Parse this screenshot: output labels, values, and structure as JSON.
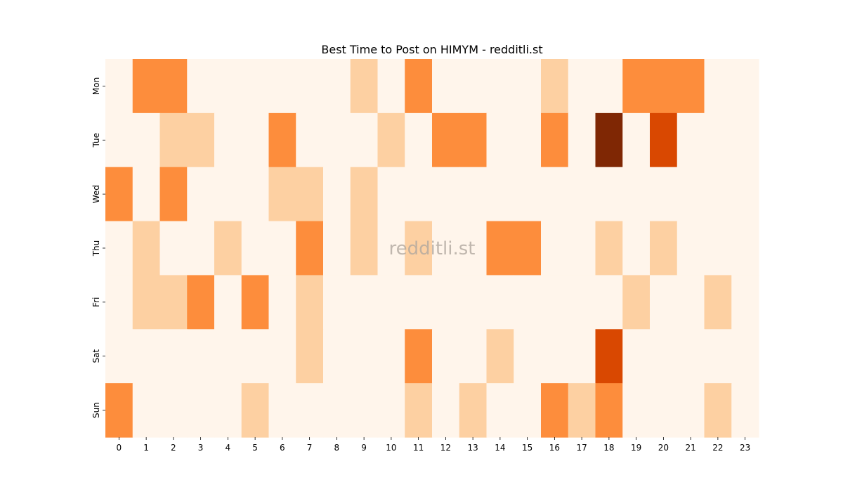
{
  "chart_data": {
    "type": "heatmap",
    "title": "Best Time to Post on HIMYM - redditli.st",
    "watermark": "redditli.st",
    "xlabel": "",
    "ylabel": "",
    "x_categories": [
      "0",
      "1",
      "2",
      "3",
      "4",
      "5",
      "6",
      "7",
      "8",
      "9",
      "10",
      "11",
      "12",
      "13",
      "14",
      "15",
      "16",
      "17",
      "18",
      "19",
      "20",
      "21",
      "22",
      "23"
    ],
    "y_categories": [
      "Mon",
      "Tue",
      "Wed",
      "Thu",
      "Fri",
      "Sat",
      "Sun"
    ],
    "colormap": "Oranges",
    "color_scale": [
      "#fff5eb",
      "#fdd0a2",
      "#fd8d3c",
      "#d94801",
      "#7f2704"
    ],
    "colorbar": false,
    "grid": false,
    "values": [
      [
        0,
        2,
        2,
        0,
        0,
        0,
        0,
        0,
        0,
        1,
        0,
        2,
        0,
        0,
        0,
        0,
        1,
        0,
        0,
        2,
        2,
        2,
        0,
        0
      ],
      [
        0,
        0,
        1,
        1,
        0,
        0,
        2,
        0,
        0,
        0,
        1,
        0,
        2,
        2,
        0,
        0,
        2,
        0,
        4,
        0,
        3,
        0,
        0,
        0
      ],
      [
        2,
        0,
        2,
        0,
        0,
        0,
        1,
        1,
        0,
        1,
        0,
        0,
        0,
        0,
        0,
        0,
        0,
        0,
        0,
        0,
        0,
        0,
        0,
        0
      ],
      [
        0,
        1,
        0,
        0,
        1,
        0,
        0,
        2,
        0,
        1,
        0,
        1,
        0,
        0,
        2,
        2,
        0,
        0,
        1,
        0,
        1,
        0,
        0,
        0
      ],
      [
        0,
        1,
        1,
        2,
        0,
        2,
        0,
        1,
        0,
        0,
        0,
        0,
        0,
        0,
        0,
        0,
        0,
        0,
        0,
        1,
        0,
        0,
        1,
        0
      ],
      [
        0,
        0,
        0,
        0,
        0,
        0,
        0,
        1,
        0,
        0,
        0,
        2,
        0,
        0,
        1,
        0,
        0,
        0,
        3,
        0,
        0,
        0,
        0,
        0
      ],
      [
        2,
        0,
        0,
        0,
        0,
        1,
        0,
        0,
        0,
        0,
        0,
        1,
        0,
        1,
        0,
        0,
        2,
        1,
        2,
        0,
        0,
        0,
        1,
        0
      ]
    ]
  }
}
